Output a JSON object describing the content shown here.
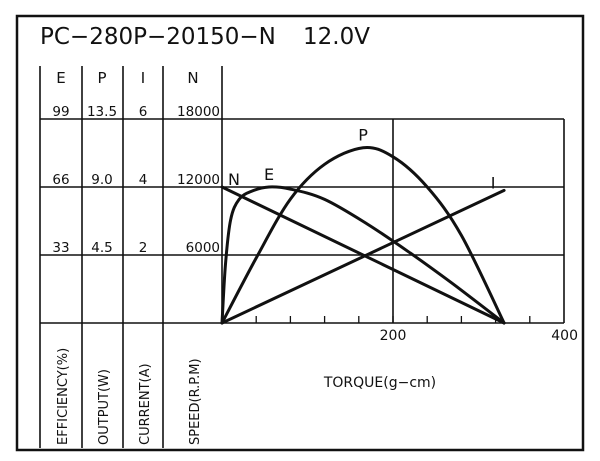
{
  "title": "PC−280P−20150−N",
  "voltage": "12.0V",
  "headers": [
    "E",
    "P",
    "I",
    "N"
  ],
  "rows": [
    [
      "99",
      "13.5",
      "6",
      "18000"
    ],
    [
      "66",
      "9.0",
      "4",
      "12000"
    ],
    [
      "33",
      "4.5",
      "2",
      "6000"
    ]
  ],
  "axis_labels": [
    "EFFICIENCY(%)",
    "OUTPUT(W)",
    "CURRENT(A)",
    "SPEED(R.P.M)"
  ],
  "xlabel": "TORQUE(g−cm)",
  "chart_data": {
    "type": "line",
    "title": "PC−280P−20150−N 12.0V",
    "xlabel": "TORQUE(g−cm)",
    "xlim": [
      0,
      400
    ],
    "x_ticks": [
      200,
      400
    ],
    "x_minor_step": 40,
    "grid": true,
    "series": [
      {
        "name": "N",
        "unit": "SPEED(R.P.M)",
        "ylim": [
          0,
          18000
        ],
        "x": [
          0,
          330
        ],
        "values": [
          12000,
          0
        ]
      },
      {
        "name": "I",
        "unit": "CURRENT(A)",
        "ylim": [
          0,
          6
        ],
        "x": [
          0,
          330
        ],
        "values": [
          0,
          3.9
        ]
      },
      {
        "name": "P",
        "unit": "OUTPUT(W)",
        "ylim": [
          0,
          13.5
        ],
        "x": [
          0,
          40,
          80,
          120,
          165,
          200,
          240,
          280,
          330
        ],
        "values": [
          0,
          4.3,
          8.2,
          10.5,
          11.6,
          11.0,
          9.0,
          5.8,
          0
        ]
      },
      {
        "name": "E",
        "unit": "EFFICIENCY(%)",
        "ylim": [
          0,
          99
        ],
        "x": [
          0,
          4,
          10,
          20,
          35,
          55,
          80,
          120,
          170,
          220,
          270,
          330
        ],
        "values": [
          0,
          28,
          50,
          60,
          64,
          66,
          65,
          60,
          48,
          34,
          19,
          0
        ]
      }
    ],
    "curve_labels": [
      {
        "text": "N",
        "series": "N"
      },
      {
        "text": "E",
        "series": "E"
      },
      {
        "text": "P",
        "series": "P"
      },
      {
        "text": "I",
        "series": "I"
      }
    ]
  }
}
